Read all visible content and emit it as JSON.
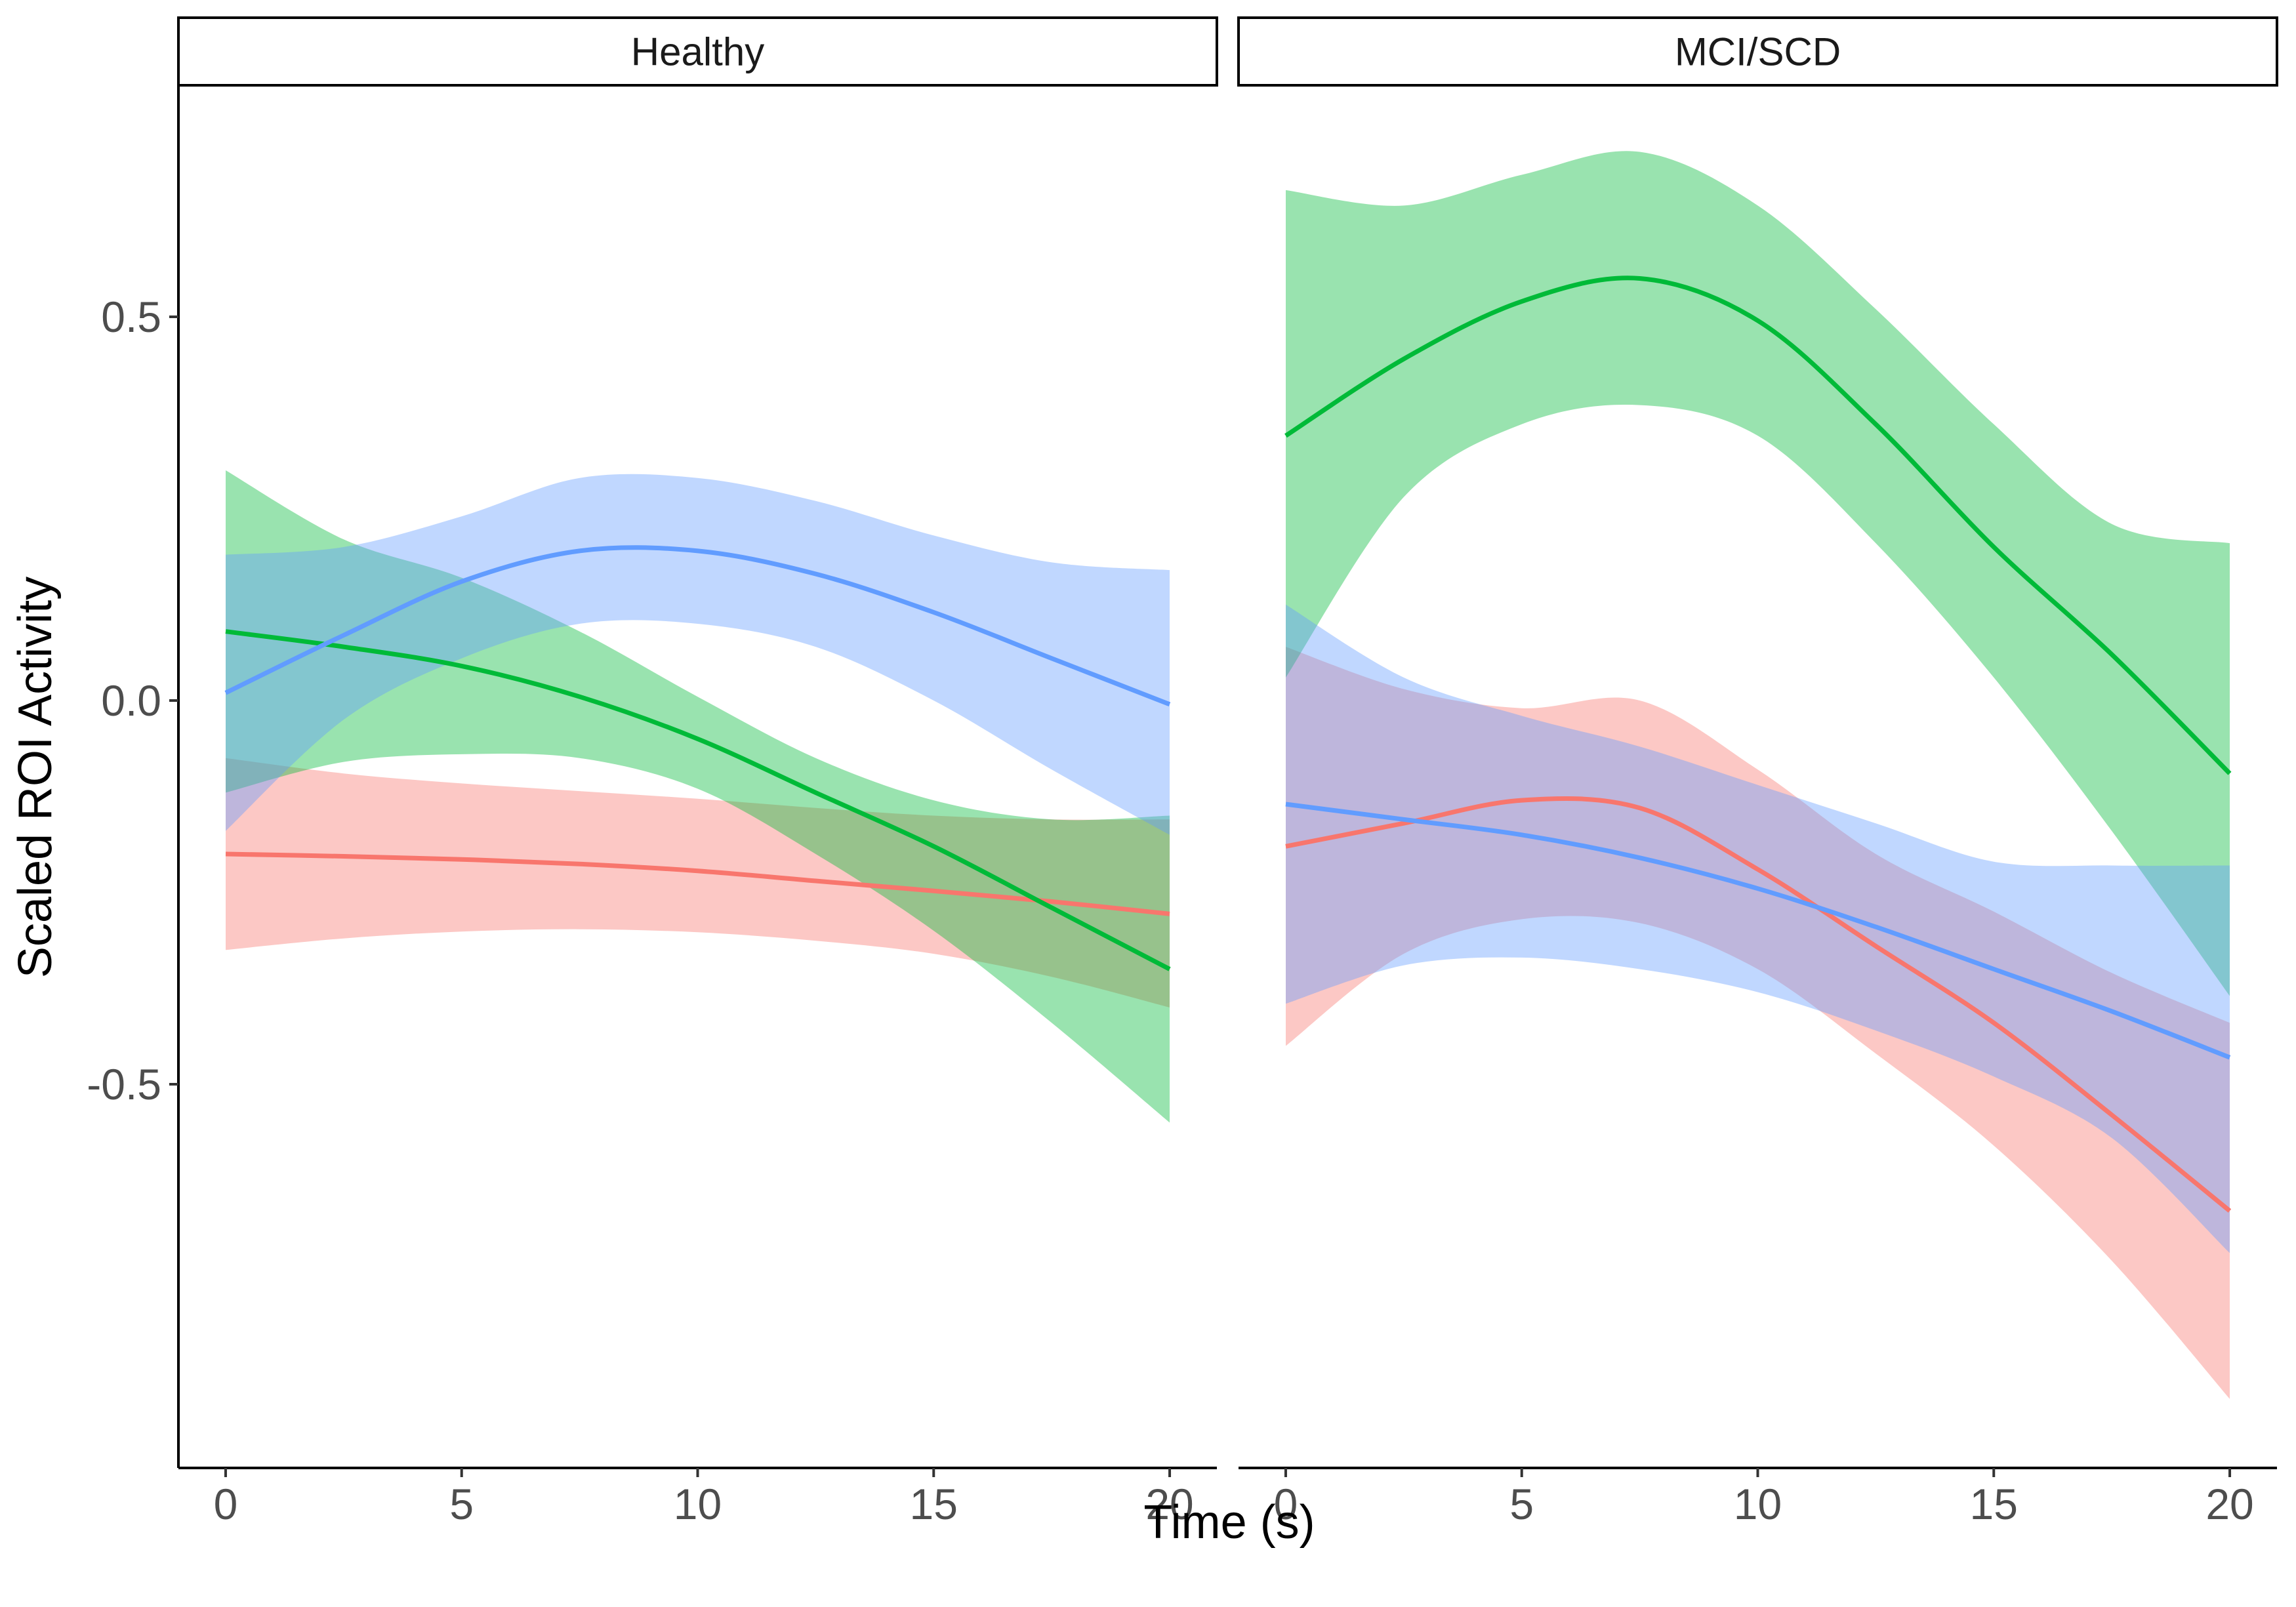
{
  "chart_data": {
    "type": "line",
    "xlabel": "Time (s)",
    "ylabel": "Scaled ROI Activity",
    "xlim": [
      -1,
      21
    ],
    "ylim": [
      -1.0,
      0.8
    ],
    "x_ticks": [
      0,
      5,
      10,
      15,
      20
    ],
    "x_tick_labels": [
      "0",
      "5",
      "10",
      "15",
      "20"
    ],
    "y_ticks": [
      -0.5,
      0.0,
      0.5
    ],
    "y_tick_labels": [
      "-0.5",
      "0.0",
      "0.5"
    ],
    "grid": false,
    "legend": "none",
    "series_colors": [
      "#f8766d",
      "#00ba38",
      "#619cff"
    ],
    "panels": [
      {
        "label": "Healthy",
        "series": [
          {
            "color": "#f8766d",
            "x": [
              0,
              2.5,
              5,
              7.5,
              10,
              12.5,
              15,
              17.5,
              20
            ],
            "y": [
              -0.2,
              -0.203,
              -0.207,
              -0.213,
              -0.222,
              -0.235,
              -0.248,
              -0.262,
              -0.278
            ],
            "lower": [
              -0.325,
              -0.31,
              -0.301,
              -0.298,
              -0.302,
              -0.313,
              -0.33,
              -0.36,
              -0.4
            ],
            "upper": [
              -0.075,
              -0.095,
              -0.108,
              -0.118,
              -0.128,
              -0.14,
              -0.15,
              -0.155,
              -0.155
            ]
          },
          {
            "color": "#00ba38",
            "x": [
              0,
              2.5,
              5,
              7.5,
              10,
              12.5,
              15,
              17.5,
              20
            ],
            "y": [
              0.09,
              0.07,
              0.045,
              0.005,
              -0.05,
              -0.12,
              -0.19,
              -0.27,
              -0.35
            ],
            "lower": [
              -0.12,
              -0.08,
              -0.07,
              -0.075,
              -0.115,
              -0.2,
              -0.3,
              -0.42,
              -0.55
            ],
            "upper": [
              0.3,
              0.21,
              0.16,
              0.09,
              0.005,
              -0.075,
              -0.13,
              -0.155,
              -0.15
            ]
          },
          {
            "color": "#619cff",
            "x": [
              0,
              2.5,
              5,
              7.5,
              10,
              12.5,
              15,
              17.5,
              20
            ],
            "y": [
              0.01,
              0.085,
              0.155,
              0.195,
              0.195,
              0.165,
              0.115,
              0.055,
              -0.005
            ],
            "lower": [
              -0.17,
              -0.025,
              0.055,
              0.1,
              0.1,
              0.07,
              0.0,
              -0.09,
              -0.175
            ],
            "upper": [
              0.19,
              0.2,
              0.24,
              0.29,
              0.29,
              0.26,
              0.215,
              0.18,
              0.17
            ]
          }
        ]
      },
      {
        "label": "MCI/SCD",
        "series": [
          {
            "color": "#f8766d",
            "x": [
              0,
              2.5,
              5,
              7.5,
              10,
              12.5,
              15,
              17.5,
              20
            ],
            "y": [
              -0.19,
              -0.16,
              -0.13,
              -0.14,
              -0.22,
              -0.32,
              -0.42,
              -0.54,
              -0.665
            ],
            "lower": [
              -0.45,
              -0.33,
              -0.285,
              -0.29,
              -0.35,
              -0.46,
              -0.58,
              -0.73,
              -0.91
            ],
            "upper": [
              0.07,
              0.015,
              -0.01,
              0.0,
              -0.09,
              -0.2,
              -0.275,
              -0.355,
              -0.42
            ]
          },
          {
            "color": "#00ba38",
            "x": [
              0,
              2.5,
              5,
              7.5,
              10,
              12.5,
              15,
              17.5,
              20
            ],
            "y": [
              0.345,
              0.445,
              0.52,
              0.55,
              0.495,
              0.36,
              0.2,
              0.06,
              -0.095
            ],
            "lower": [
              0.03,
              0.265,
              0.36,
              0.385,
              0.345,
              0.205,
              0.03,
              -0.17,
              -0.385
            ],
            "upper": [
              0.665,
              0.645,
              0.685,
              0.715,
              0.645,
              0.51,
              0.36,
              0.23,
              0.205
            ]
          },
          {
            "color": "#619cff",
            "x": [
              0,
              2.5,
              5,
              7.5,
              10,
              12.5,
              15,
              17.5,
              20
            ],
            "y": [
              -0.135,
              -0.155,
              -0.175,
              -0.205,
              -0.245,
              -0.295,
              -0.35,
              -0.405,
              -0.465
            ],
            "lower": [
              -0.395,
              -0.345,
              -0.335,
              -0.35,
              -0.38,
              -0.43,
              -0.49,
              -0.57,
              -0.72
            ],
            "upper": [
              0.125,
              0.03,
              -0.02,
              -0.06,
              -0.11,
              -0.16,
              -0.21,
              -0.215,
              -0.215
            ]
          }
        ]
      }
    ]
  }
}
